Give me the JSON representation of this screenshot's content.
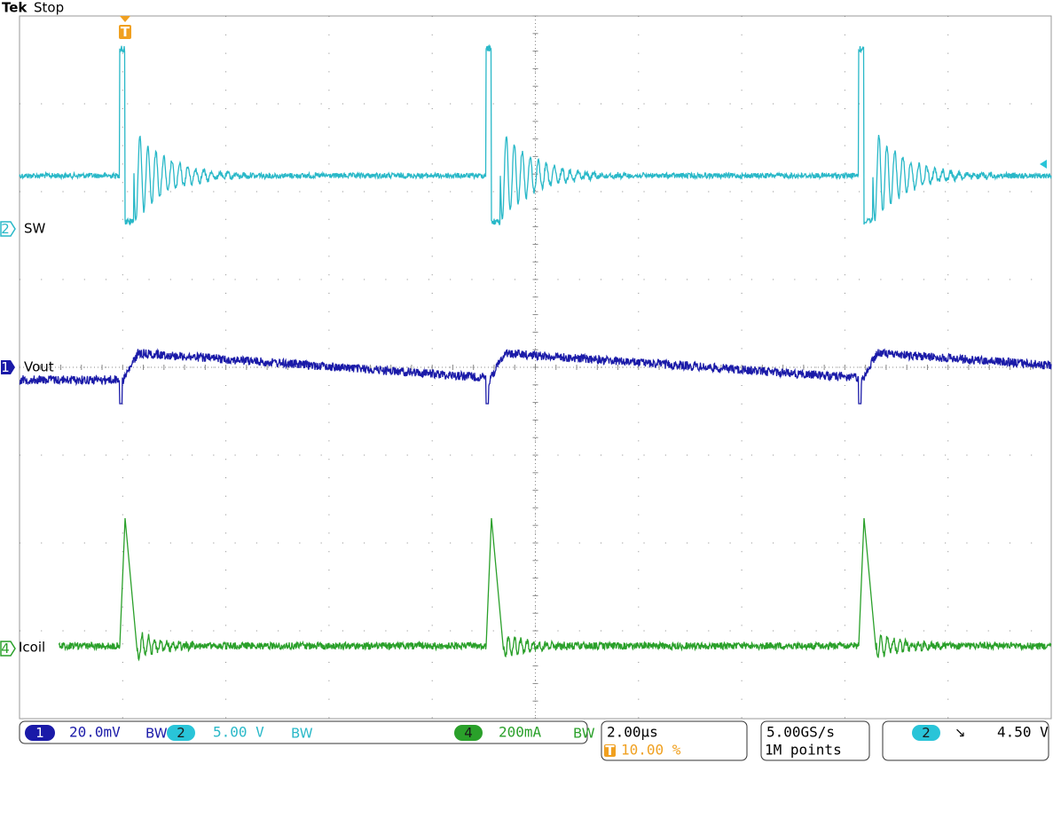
{
  "header": {
    "brand": "Tek",
    "status": "Stop"
  },
  "trigger_marker": "T",
  "channels": [
    {
      "number": "2",
      "label": "SW"
    },
    {
      "number": "1",
      "label": "Vout"
    },
    {
      "number": "4",
      "label": "Icoil"
    }
  ],
  "status_bar": {
    "ch1": {
      "number": "1",
      "scale": "20.0mV",
      "bw": "BW"
    },
    "ch2": {
      "number": "2",
      "scale": "5.00 V",
      "bw": "BW"
    },
    "ch4": {
      "number": "4",
      "scale": "200mA",
      "bw": "BW"
    },
    "timebase": {
      "scale": "2.00µs",
      "trigger_icon": "T",
      "position": "10.00 %"
    },
    "acquisition": {
      "rate": "5.00GS/s",
      "length": "1M points"
    },
    "trigger": {
      "source": "2",
      "slope": "↘",
      "level": "4.50 V"
    }
  }
}
